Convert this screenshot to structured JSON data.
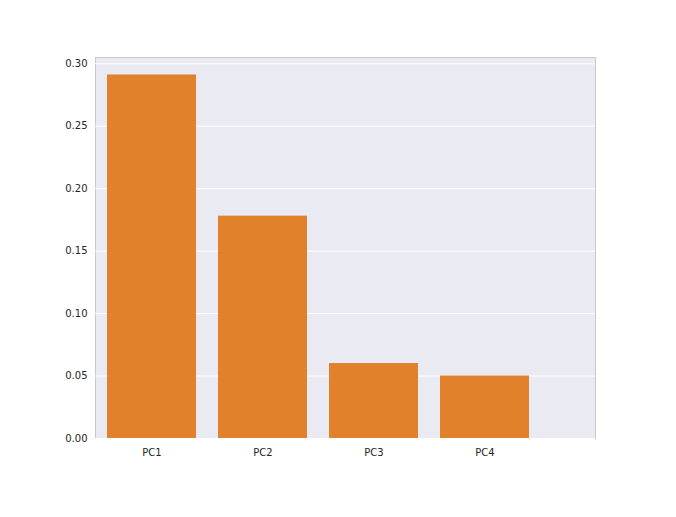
{
  "chart_data": {
    "type": "bar",
    "categories": [
      "PC1",
      "PC2",
      "PC3",
      "PC4"
    ],
    "values": [
      0.291,
      0.178,
      0.06,
      0.05
    ],
    "color": "#e1812c",
    "ylim": [
      0,
      0.305
    ],
    "yticks": [
      {
        "value": 0,
        "label": "0.00"
      },
      {
        "value": 0.05,
        "label": "0.05"
      },
      {
        "value": 0.1,
        "label": "0.10"
      },
      {
        "value": 0.15,
        "label": "0.15"
      },
      {
        "value": 0.2,
        "label": "0.20"
      },
      {
        "value": 0.25,
        "label": "0.25"
      },
      {
        "value": 0.3,
        "label": "0.30"
      }
    ],
    "grid": true
  }
}
